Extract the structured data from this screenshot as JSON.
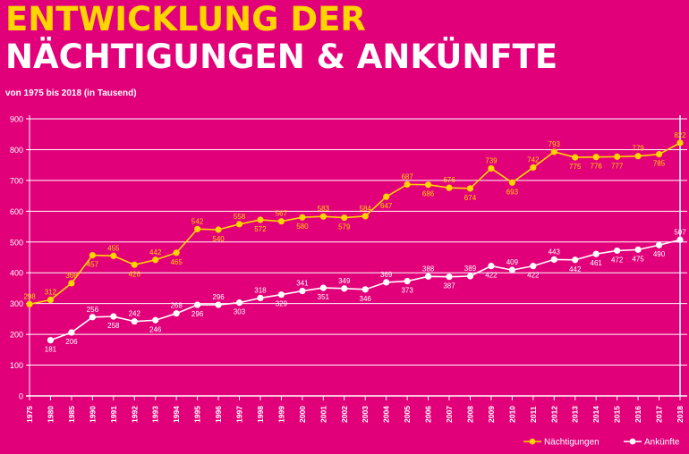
{
  "title_line1": "ENTWICKLUNG DER",
  "title_line2": "NÄCHTIGUNGEN & ANKÜNFTE",
  "subtitle": "von 1975  bis 2018 (in Tausend)",
  "colors": {
    "background": "#e2007a",
    "naechtigungen": "#ffd500",
    "ankuenfte": "#ffffff"
  },
  "chart_data": {
    "type": "line",
    "title": "",
    "xlabel": "",
    "ylabel": "",
    "ylim": [
      0,
      900
    ],
    "yticks": [
      0,
      100,
      200,
      300,
      400,
      500,
      600,
      700,
      800,
      900
    ],
    "grid": true,
    "legend": "bottom-right",
    "categories": [
      "1975",
      "1980",
      "1985",
      "1990",
      "1991",
      "1992",
      "1993",
      "1994",
      "1995",
      "1996",
      "1997",
      "1998",
      "1999",
      "2000",
      "2001",
      "2002",
      "2003",
      "2004",
      "2005",
      "2006",
      "2007",
      "2008",
      "2009",
      "2010",
      "2011",
      "2012",
      "2013",
      "2014",
      "2015",
      "2016",
      "2017",
      "2018"
    ],
    "series": [
      {
        "name": "Nächtigungen",
        "values": [
          298,
          312,
          366,
          457,
          455,
          426,
          442,
          465,
          542,
          540,
          558,
          572,
          567,
          580,
          583,
          579,
          584,
          647,
          687,
          686,
          676,
          674,
          739,
          693,
          742,
          793,
          775,
          776,
          777,
          779,
          785,
          822
        ]
      },
      {
        "name": "Ankünfte",
        "values": [
          null,
          181,
          206,
          256,
          258,
          242,
          246,
          268,
          296,
          296,
          303,
          318,
          329,
          341,
          351,
          349,
          346,
          369,
          373,
          388,
          387,
          389,
          422,
          409,
          422,
          443,
          442,
          461,
          472,
          475,
          490,
          507
        ]
      }
    ]
  }
}
